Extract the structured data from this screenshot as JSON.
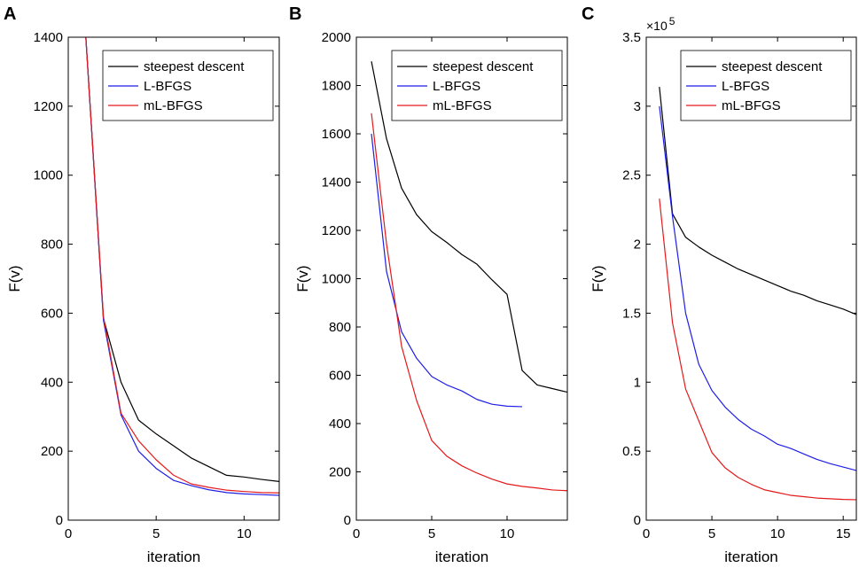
{
  "colors": {
    "steepest": "#000000",
    "lbfgs": "#1f1fe6",
    "mlbfgs": "#e31a1c"
  },
  "chart_data": [
    {
      "type": "line",
      "panel": "A",
      "xlabel": "iteration",
      "ylabel": "F(v)",
      "xlim": [
        0,
        12
      ],
      "ylim": [
        0,
        1400
      ],
      "xticks": [
        0,
        5,
        10
      ],
      "yticks": [
        0,
        200,
        400,
        600,
        800,
        1000,
        1200,
        1400
      ],
      "yexp_prefix": "",
      "yexp_power": "",
      "legend_position": "top-right",
      "series": [
        {
          "name": "steepest descent",
          "color_key": "steepest",
          "x": [
            1,
            2,
            3,
            4,
            5,
            6,
            7,
            8,
            9,
            10,
            11,
            12
          ],
          "y": [
            1400,
            585,
            400,
            290,
            250,
            215,
            180,
            155,
            130,
            125,
            118,
            112
          ]
        },
        {
          "name": "L-BFGS",
          "color_key": "lbfgs",
          "x": [
            1,
            2,
            3,
            4,
            5,
            6,
            7,
            8,
            9,
            10,
            11,
            12
          ],
          "y": [
            1400,
            580,
            305,
            200,
            150,
            115,
            100,
            88,
            80,
            76,
            74,
            72
          ]
        },
        {
          "name": "mL-BFGS",
          "color_key": "mlbfgs",
          "x": [
            1,
            2,
            3,
            4,
            5,
            6,
            7,
            8,
            9,
            10,
            11,
            12
          ],
          "y": [
            1400,
            590,
            310,
            230,
            175,
            130,
            105,
            95,
            87,
            83,
            80,
            79
          ]
        }
      ]
    },
    {
      "type": "line",
      "panel": "B",
      "xlabel": "iteration",
      "ylabel": "F(v)",
      "xlim": [
        0,
        14
      ],
      "ylim": [
        0,
        2000
      ],
      "xticks": [
        0,
        5,
        10
      ],
      "yticks": [
        0,
        200,
        400,
        600,
        800,
        1000,
        1200,
        1400,
        1600,
        1800,
        2000
      ],
      "yexp_prefix": "",
      "yexp_power": "",
      "legend_position": "top-right",
      "series": [
        {
          "name": "steepest descent",
          "color_key": "steepest",
          "x": [
            1,
            2,
            3,
            4,
            5,
            6,
            7,
            8,
            9,
            10,
            11,
            12,
            13,
            14
          ],
          "y": [
            1900,
            1580,
            1375,
            1265,
            1195,
            1150,
            1100,
            1060,
            995,
            935,
            620,
            560,
            545,
            530
          ]
        },
        {
          "name": "L-BFGS",
          "color_key": "lbfgs",
          "x": [
            1,
            2,
            3,
            4,
            5,
            6,
            7,
            8,
            9,
            10,
            11
          ],
          "y": [
            1600,
            1030,
            780,
            670,
            595,
            560,
            535,
            500,
            480,
            472,
            470
          ]
        },
        {
          "name": "mL-BFGS",
          "color_key": "mlbfgs",
          "x": [
            1,
            2,
            3,
            4,
            5,
            6,
            7,
            8,
            9,
            10,
            11,
            12,
            13,
            14
          ],
          "y": [
            1685,
            1145,
            720,
            495,
            330,
            265,
            225,
            195,
            170,
            150,
            140,
            133,
            125,
            122
          ]
        }
      ]
    },
    {
      "type": "line",
      "panel": "C",
      "xlabel": "iteration",
      "ylabel": "F(v)",
      "xlim": [
        0,
        16
      ],
      "ylim": [
        0,
        3.5
      ],
      "xticks": [
        0,
        5,
        10,
        15
      ],
      "yticks": [
        0,
        0.5,
        1,
        1.5,
        2,
        2.5,
        3,
        3.5
      ],
      "yexp_prefix": "×10",
      "yexp_power": "5",
      "legend_position": "top-right",
      "series": [
        {
          "name": "steepest descent",
          "color_key": "steepest",
          "x": [
            1,
            2,
            3,
            4,
            5,
            6,
            7,
            8,
            9,
            10,
            11,
            12,
            13,
            14,
            15,
            16
          ],
          "y": [
            3.14,
            2.22,
            2.05,
            1.98,
            1.92,
            1.87,
            1.82,
            1.78,
            1.74,
            1.7,
            1.66,
            1.63,
            1.59,
            1.56,
            1.53,
            1.49
          ]
        },
        {
          "name": "L-BFGS",
          "color_key": "lbfgs",
          "x": [
            1,
            2,
            3,
            4,
            5,
            6,
            7,
            8,
            9,
            10,
            11,
            12,
            13,
            14,
            15,
            16
          ],
          "y": [
            3.0,
            2.2,
            1.5,
            1.13,
            0.94,
            0.82,
            0.73,
            0.66,
            0.61,
            0.55,
            0.52,
            0.48,
            0.44,
            0.41,
            0.385,
            0.36
          ]
        },
        {
          "name": "mL-BFGS",
          "color_key": "mlbfgs",
          "x": [
            1,
            2,
            3,
            4,
            5,
            6,
            7,
            8,
            9,
            10,
            11,
            12,
            13,
            14,
            15,
            16
          ],
          "y": [
            2.33,
            1.43,
            0.95,
            0.72,
            0.49,
            0.38,
            0.31,
            0.26,
            0.22,
            0.2,
            0.18,
            0.17,
            0.16,
            0.155,
            0.15,
            0.148
          ]
        }
      ]
    }
  ]
}
